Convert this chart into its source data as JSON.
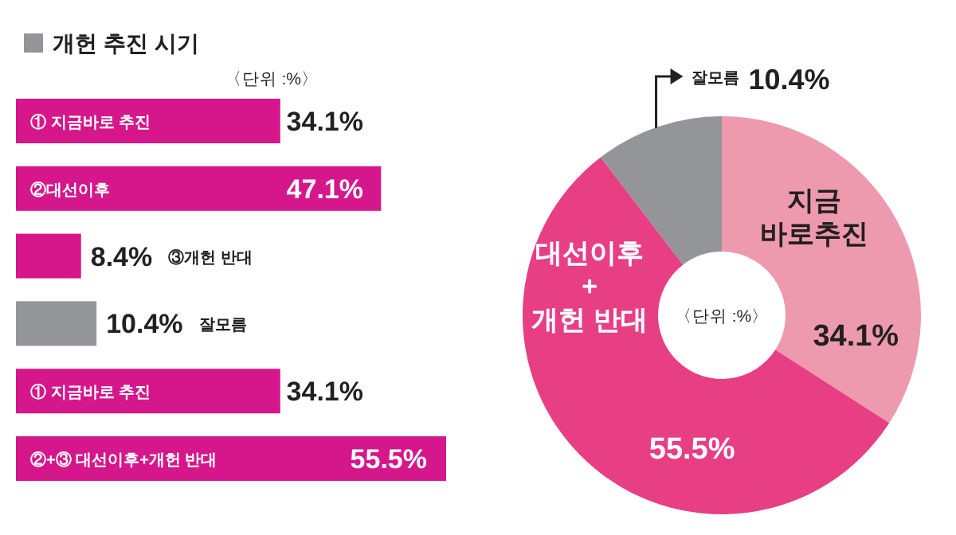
{
  "chart_data": [
    {
      "type": "bar",
      "orientation": "horizontal",
      "title": "개헌 추진 시기",
      "subtitle": "〈단위 :%〉",
      "categories": [
        "① 지금바로 추진",
        "②대선이후",
        "③개헌 반대",
        "잘모름",
        "① 지금바로 추진",
        "②+③ 대선이후+개헌 반대"
      ],
      "values": [
        34.1,
        47.1,
        8.4,
        10.4,
        34.1,
        55.5
      ],
      "colors": [
        "#d6168b",
        "#d6168b",
        "#d6168b",
        "#939598",
        "#d6168b",
        "#d6168b"
      ],
      "value_labels": [
        "34.1%",
        "47.1%",
        "8.4%",
        "10.4%",
        "34.1%",
        "55.5%"
      ]
    },
    {
      "type": "donut",
      "categories": [
        "지금\n바로추진",
        "대선이후\n+\n개헌 반대",
        "잘모름"
      ],
      "values": [
        34.1,
        55.5,
        10.4
      ],
      "colors": [
        "#ee9aae",
        "#e83e84",
        "#939598"
      ],
      "value_labels": [
        "34.1%",
        "55.5%",
        "10.4%"
      ],
      "annotations": [
        "〈단위 :%〉"
      ]
    }
  ]
}
